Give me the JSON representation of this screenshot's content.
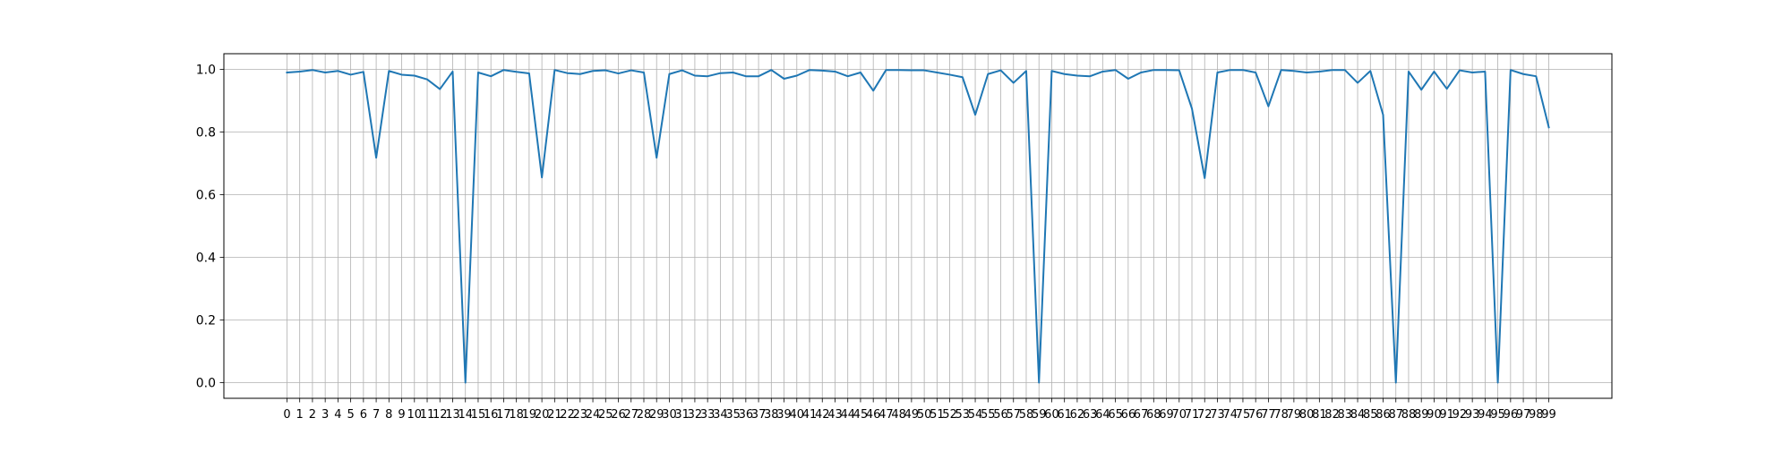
{
  "chart_data": {
    "type": "line",
    "title": "",
    "xlabel": "",
    "ylabel": "",
    "xlim": [
      -4.95,
      103.95
    ],
    "ylim": [
      -0.05,
      1.05
    ],
    "grid": true,
    "x_ticks": [
      0,
      1,
      2,
      3,
      4,
      5,
      6,
      7,
      8,
      9,
      10,
      11,
      12,
      13,
      14,
      15,
      16,
      17,
      18,
      19,
      20,
      21,
      22,
      23,
      24,
      25,
      26,
      27,
      28,
      29,
      30,
      31,
      32,
      33,
      34,
      35,
      36,
      37,
      38,
      39,
      40,
      41,
      42,
      43,
      44,
      45,
      46,
      47,
      48,
      49,
      50,
      51,
      52,
      53,
      54,
      55,
      56,
      57,
      58,
      59,
      60,
      61,
      62,
      63,
      64,
      65,
      66,
      67,
      68,
      69,
      70,
      71,
      72,
      73,
      74,
      75,
      76,
      77,
      78,
      79,
      80,
      81,
      82,
      83,
      84,
      85,
      86,
      87,
      88,
      89,
      90,
      91,
      92,
      93,
      94,
      95,
      96,
      97,
      98,
      99
    ],
    "y_ticks": [
      "0.0",
      "0.2",
      "0.4",
      "0.6",
      "0.8",
      "1.0"
    ],
    "y_tick_values": [
      0.0,
      0.2,
      0.4,
      0.6,
      0.8,
      1.0
    ],
    "series": [
      {
        "color": "#1f77b4",
        "x": [
          0,
          1,
          2,
          3,
          4,
          5,
          6,
          7,
          8,
          9,
          10,
          11,
          12,
          13,
          14,
          15,
          16,
          17,
          18,
          19,
          20,
          21,
          22,
          23,
          24,
          25,
          26,
          27,
          28,
          29,
          30,
          31,
          32,
          33,
          34,
          35,
          36,
          37,
          38,
          39,
          40,
          41,
          42,
          43,
          44,
          45,
          46,
          47,
          48,
          49,
          50,
          51,
          52,
          53,
          54,
          55,
          56,
          57,
          58,
          59,
          60,
          61,
          62,
          63,
          64,
          65,
          66,
          67,
          68,
          69,
          70,
          71,
          72,
          73,
          74,
          75,
          76,
          77,
          78,
          79,
          80,
          81,
          82,
          83,
          84,
          85,
          86,
          87,
          88,
          89,
          90,
          91,
          92,
          93,
          94,
          95,
          96,
          97,
          98,
          99
        ],
        "y": [
          0.99,
          0.993,
          0.998,
          0.99,
          0.995,
          0.983,
          0.992,
          0.718,
          0.995,
          0.983,
          0.98,
          0.968,
          0.937,
          0.993,
          0.0,
          0.99,
          0.978,
          0.998,
          0.992,
          0.987,
          0.655,
          0.998,
          0.988,
          0.985,
          0.995,
          0.997,
          0.987,
          0.997,
          0.99,
          0.718,
          0.985,
          0.997,
          0.98,
          0.978,
          0.988,
          0.99,
          0.978,
          0.978,
          0.998,
          0.97,
          0.98,
          0.998,
          0.996,
          0.993,
          0.978,
          0.99,
          0.932,
          0.998,
          0.998,
          0.997,
          0.997,
          0.99,
          0.983,
          0.975,
          0.855,
          0.985,
          0.997,
          0.957,
          0.995,
          0.0,
          0.995,
          0.985,
          0.98,
          0.978,
          0.993,
          0.998,
          0.97,
          0.99,
          0.998,
          0.998,
          0.997,
          0.875,
          0.653,
          0.99,
          0.998,
          0.998,
          0.99,
          0.882,
          0.998,
          0.995,
          0.99,
          0.993,
          0.998,
          0.998,
          0.957,
          0.995,
          0.855,
          0.0,
          0.993,
          0.935,
          0.993,
          0.938,
          0.997,
          0.99,
          0.993,
          0.0,
          0.998,
          0.985,
          0.978,
          0.815
        ]
      }
    ]
  }
}
